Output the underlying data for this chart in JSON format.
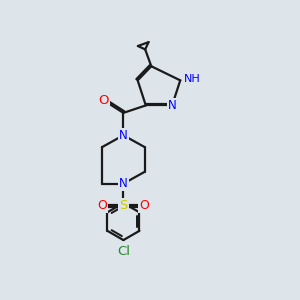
{
  "bg_color": "#dde5ea",
  "line_color": "#1a1a1a",
  "bond_width": 1.6,
  "atom_colors": {
    "N": "#0000ff",
    "O": "#ff0000",
    "S": "#cccc00",
    "Cl": "#228b22",
    "C": "#1a1a1a",
    "H": "#66aaaa"
  },
  "font_size": 8.5,
  "fig_width": 3.0,
  "fig_height": 3.0,
  "dpi": 100,
  "xlim": [
    0,
    10
  ],
  "ylim": [
    0,
    10
  ]
}
